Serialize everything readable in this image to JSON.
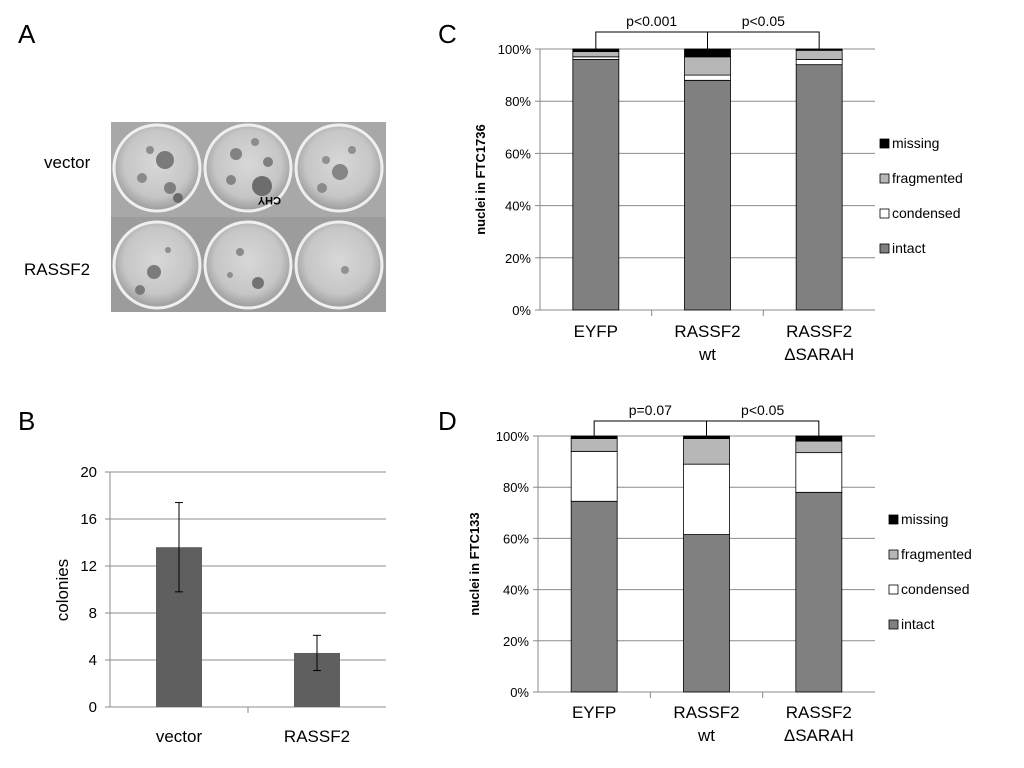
{
  "figure": {
    "panels": {
      "A": {
        "letter": "A",
        "row_labels": [
          "vector",
          "RASSF2"
        ],
        "plate_mark": "CHY"
      },
      "B": {
        "letter": "B"
      },
      "C": {
        "letter": "C"
      },
      "D": {
        "letter": "D"
      }
    }
  },
  "colors": {
    "intact": "#808080",
    "condensed": "#ffffff",
    "fragmented": "#b7b7b7",
    "missing": "#000000",
    "bar_b": "#5f5f5f",
    "grid": "#8c8c8c"
  },
  "chart_data": [
    {
      "panel": "B",
      "type": "bar",
      "categories": [
        "vector",
        "RASSF2"
      ],
      "values": [
        13.6,
        4.6
      ],
      "errors": [
        3.8,
        1.5
      ],
      "ylabel": "colonies",
      "ylim": [
        0,
        20
      ],
      "yticks": [
        "0",
        "4",
        "8",
        "12",
        "16",
        "20"
      ],
      "grid": true
    },
    {
      "panel": "C",
      "type": "bar",
      "stacked": true,
      "categories": [
        [
          "EYFP"
        ],
        [
          "RASSF2",
          "wt"
        ],
        [
          "RASSF2",
          "ΔSARAH"
        ]
      ],
      "ylabel": "nuclei in FTC1736",
      "ylim": [
        0,
        100
      ],
      "yticks": [
        "0%",
        "20%",
        "40%",
        "60%",
        "80%",
        "100%"
      ],
      "grid": true,
      "legend_position": "right",
      "series": [
        {
          "name": "intact",
          "values": [
            96,
            88,
            94
          ]
        },
        {
          "name": "condensed",
          "values": [
            1,
            2,
            2
          ]
        },
        {
          "name": "fragmented",
          "values": [
            2,
            7,
            3.5
          ]
        },
        {
          "name": "missing",
          "values": [
            1,
            3,
            0.5
          ]
        }
      ],
      "annotations": [
        {
          "text": "p<0.001",
          "from": 0,
          "to": 1
        },
        {
          "text": "p<0.05",
          "from": 1,
          "to": 2
        }
      ]
    },
    {
      "panel": "D",
      "type": "bar",
      "stacked": true,
      "categories": [
        [
          "EYFP"
        ],
        [
          "RASSF2",
          "wt"
        ],
        [
          "RASSF2",
          "ΔSARAH"
        ]
      ],
      "ylabel": "nuclei in FTC133",
      "ylim": [
        0,
        100
      ],
      "yticks": [
        "0%",
        "20%",
        "40%",
        "60%",
        "80%",
        "100%"
      ],
      "grid": true,
      "legend_position": "right",
      "series": [
        {
          "name": "intact",
          "values": [
            74.5,
            61.5,
            78
          ]
        },
        {
          "name": "condensed",
          "values": [
            19.5,
            27.5,
            15.5
          ]
        },
        {
          "name": "fragmented",
          "values": [
            5,
            10,
            4.5
          ]
        },
        {
          "name": "missing",
          "values": [
            1,
            1,
            2
          ]
        }
      ],
      "annotations": [
        {
          "text": "p=0.07",
          "from": 0,
          "to": 1
        },
        {
          "text": "p<0.05",
          "from": 1,
          "to": 2
        }
      ]
    }
  ]
}
